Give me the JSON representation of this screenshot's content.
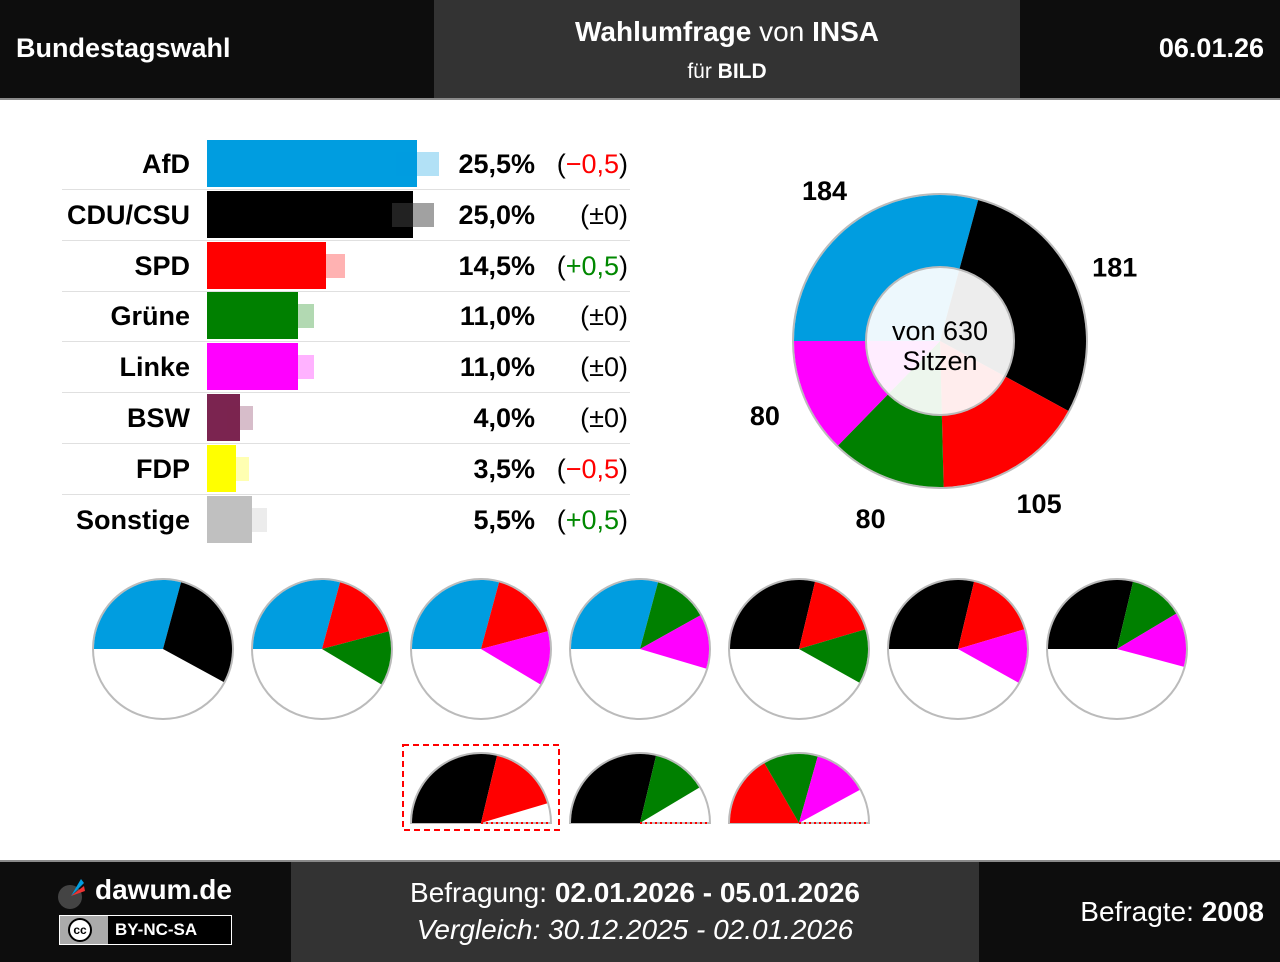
{
  "header": {
    "left": "Bundestagswahl",
    "title_bold": "Wahlumfrage",
    "title_mid": "von",
    "title_inst": "INSA",
    "sub_pre": "für",
    "sub_client": "BILD",
    "date": "06.01.26"
  },
  "chart_data": [
    {
      "type": "bar",
      "orientation": "horizontal",
      "categories": [
        "AfD",
        "CDU/CSU",
        "SPD",
        "Grüne",
        "Linke",
        "BSW",
        "FDP",
        "Sonstige"
      ],
      "values": [
        25.5,
        25.0,
        14.5,
        11.0,
        11.0,
        4.0,
        3.5,
        5.5
      ],
      "value_labels": [
        "25,5%",
        "25,0%",
        "14,5%",
        "11,0%",
        "11,0%",
        "4,0%",
        "3,5%",
        "5,5%"
      ],
      "changes": [
        "−0,5",
        "±0",
        "+0,5",
        "±0",
        "±0",
        "±0",
        "−0,5",
        "+0,5"
      ],
      "change_signs": [
        "neg",
        "zero",
        "pos",
        "zero",
        "zero",
        "zero",
        "neg",
        "pos"
      ],
      "error_margin": [
        2.6,
        2.6,
        2.2,
        2.0,
        2.0,
        1.6,
        1.6,
        1.8
      ],
      "colors": [
        "#009de0",
        "#000000",
        "#ff0000",
        "#008000",
        "#ff00ff",
        "#7b2450",
        "#ffff00",
        "#c0c0c0"
      ]
    },
    {
      "type": "pie",
      "subtype": "donut",
      "categories": [
        "AfD",
        "CDU/CSU",
        "SPD",
        "Grüne",
        "Linke"
      ],
      "values": [
        184,
        181,
        105,
        80,
        80
      ],
      "labels": [
        "184",
        "181",
        "105",
        "80",
        "80"
      ],
      "colors": [
        "#009de0",
        "#000000",
        "#ff0000",
        "#008000",
        "#ff00ff"
      ],
      "center_line1": "von 630",
      "center_line2": "Sitzen",
      "total": 630
    },
    {
      "type": "pie",
      "subtype": "coalitions",
      "total": 630,
      "majority": [
        [
          "AfD",
          "CDU/CSU"
        ],
        [
          "AfD",
          "SPD",
          "Grüne"
        ],
        [
          "AfD",
          "SPD",
          "Linke"
        ],
        [
          "AfD",
          "Grüne",
          "Linke"
        ],
        [
          "CDU/CSU",
          "SPD",
          "Grüne"
        ],
        [
          "CDU/CSU",
          "SPD",
          "Linke"
        ],
        [
          "CDU/CSU",
          "Grüne",
          "Linke"
        ]
      ],
      "no_majority": [
        [
          "CDU/CSU",
          "SPD"
        ],
        [
          "CDU/CSU",
          "Grüne"
        ],
        [
          "SPD",
          "Grüne",
          "Linke"
        ]
      ],
      "highlighted": "CDU/CSU+SPD"
    }
  ],
  "footer": {
    "brand": "dawum.de",
    "license": "BY-NC-SA",
    "cc": "cc",
    "survey_label": "Befragung:",
    "survey_dates": "02.01.2026 - 05.01.2026",
    "compare_label": "Vergleich:",
    "compare_dates": "30.12.2025 - 02.01.2026",
    "respondents_label": "Befragte:",
    "respondents": "2008"
  }
}
